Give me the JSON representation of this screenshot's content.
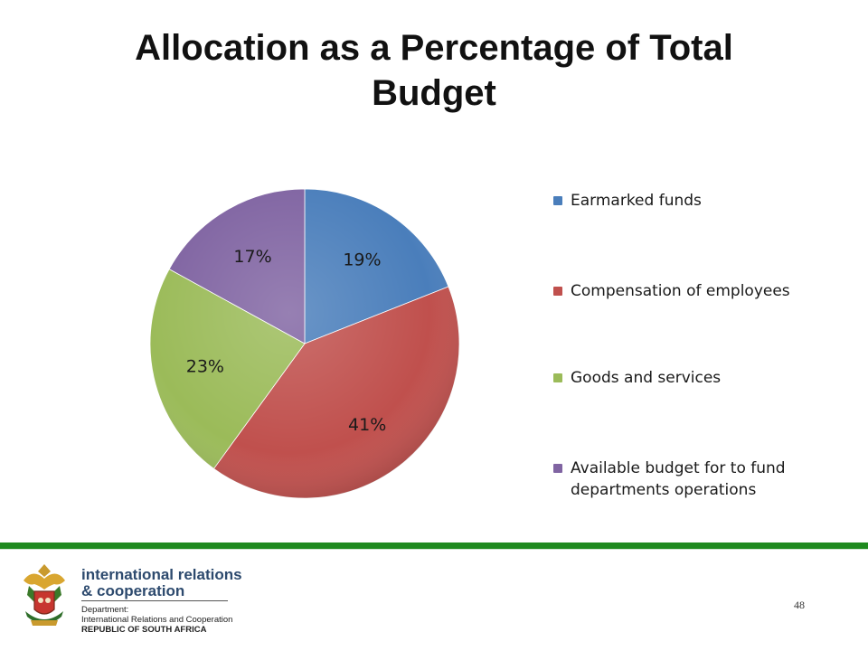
{
  "title": "Allocation as a Percentage of Total Budget",
  "chart_data": {
    "type": "pie",
    "categories": [
      "Earmarked funds",
      "Compensation of employees",
      "Goods and services",
      "Available budget for to fund departments operations"
    ],
    "values": [
      19,
      41,
      23,
      17
    ],
    "labels": [
      "19%",
      "41%",
      "23%",
      "17%"
    ],
    "colors": [
      "#4a7ebb",
      "#c0504d",
      "#9bbb59",
      "#8064a2"
    ],
    "legend_position": "right"
  },
  "legend": {
    "items": [
      {
        "label": "Earmarked funds"
      },
      {
        "label": "Compensation of employees"
      },
      {
        "label": "Goods and services"
      },
      {
        "label": "Available budget for to fund departments operations"
      }
    ]
  },
  "footer": {
    "brand_line1": "international relations",
    "brand_line2": "& cooperation",
    "dept_label": "Department:",
    "dept_name": "International Relations and Cooperation",
    "country": "REPUBLIC OF SOUTH AFRICA",
    "crest_icon": "coat-of-arms-icon"
  },
  "page_number": "48"
}
